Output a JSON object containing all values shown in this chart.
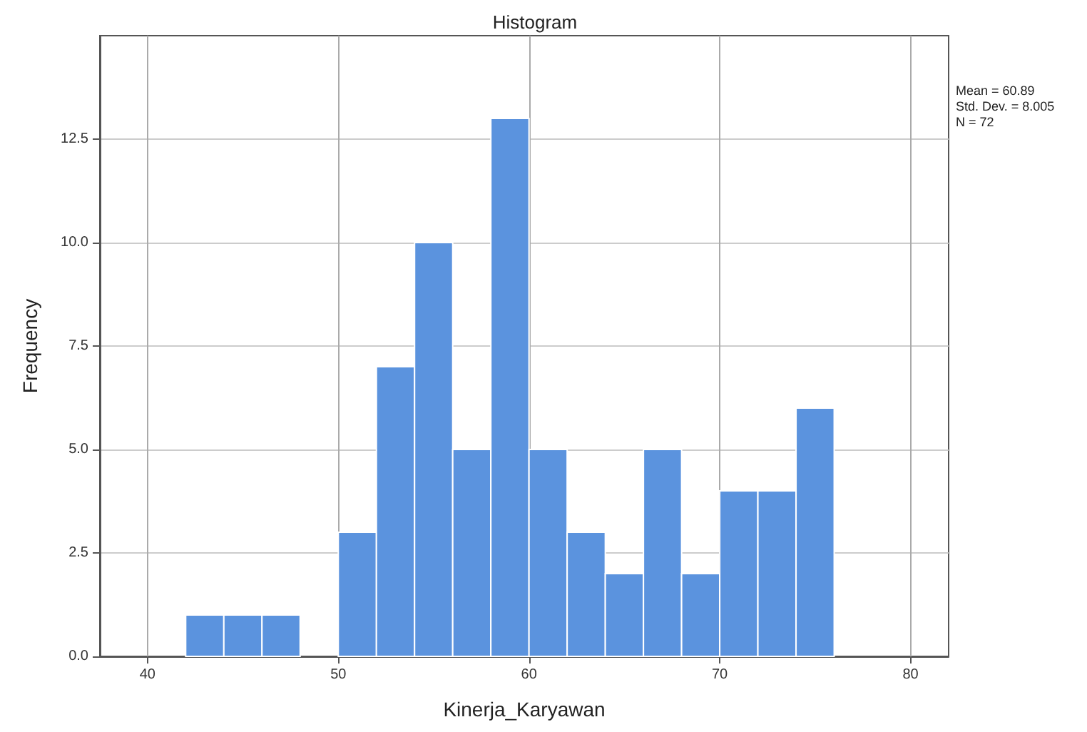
{
  "chart_data": {
    "type": "histogram",
    "title": "Histogram",
    "xlabel": "Kinerja_Karyawan",
    "ylabel": "Frequency",
    "bins": [
      42,
      44,
      46,
      48,
      50,
      52,
      54,
      56,
      58,
      60,
      62,
      64,
      66,
      68,
      70,
      72,
      74,
      76
    ],
    "values": [
      1,
      1,
      1,
      0,
      3,
      7,
      10,
      5,
      13,
      5,
      3,
      2,
      5,
      2,
      4,
      4,
      6
    ],
    "color": "#5b93de",
    "xlim": [
      37.5,
      82
    ],
    "xticks": [
      40,
      50,
      60,
      70,
      80
    ],
    "ylim": [
      0,
      15
    ],
    "yticks": [
      {
        "value": 0,
        "label": "0.0"
      },
      {
        "value": 2.5,
        "label": "2.5"
      },
      {
        "value": 5,
        "label": "5.0"
      },
      {
        "value": 7.5,
        "label": "7.5"
      },
      {
        "value": 10,
        "label": "10.0"
      },
      {
        "value": 12.5,
        "label": "12.5"
      }
    ],
    "grid": true,
    "annotations": [
      "Mean = 60.89",
      "Std. Dev. = 8.005",
      "N = 72"
    ]
  }
}
